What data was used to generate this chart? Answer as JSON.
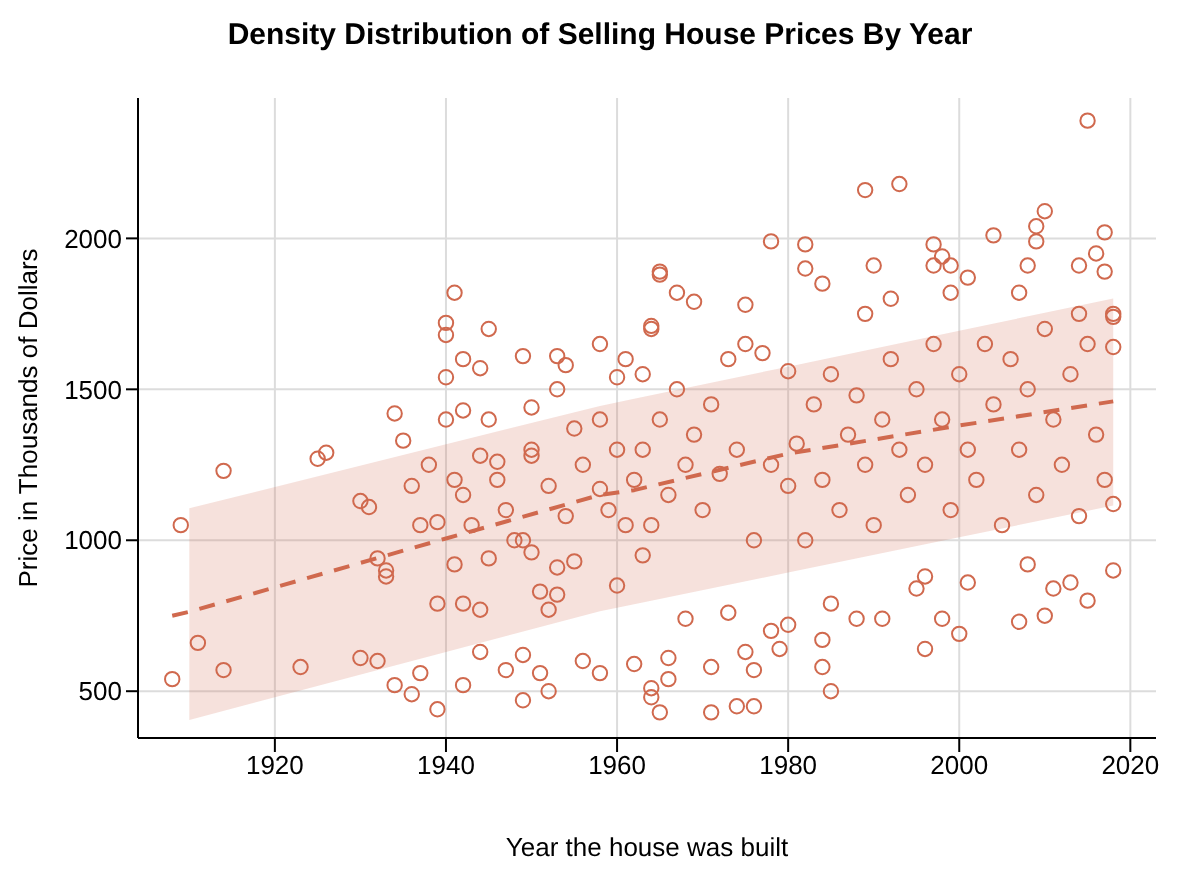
{
  "chart_data": {
    "type": "scatter",
    "title": "Density Distribution of Selling House Prices By Year",
    "xlabel": "Year the house was built",
    "ylabel": "Price in Thousands of Dollars",
    "xlim": [
      1904,
      2023
    ],
    "xticks": [
      1920,
      1940,
      1960,
      1980,
      2000,
      2020
    ],
    "ylim": [
      345,
      2465
    ],
    "yticks": [
      500,
      1000,
      1500,
      2000
    ],
    "grid": true,
    "legend": false,
    "series": [
      {
        "color": "#d0694e",
        "marker": "circle",
        "x": [
          1908,
          1909,
          1911,
          1914,
          1914,
          1923,
          1925,
          1926,
          1930,
          1930,
          1931,
          1932,
          1933,
          1933,
          1932,
          1934,
          1935,
          1934,
          1936,
          1937,
          1936,
          1937,
          1938,
          1939,
          1939,
          1939,
          1940,
          1940,
          1941,
          1942,
          1940,
          1945,
          1944,
          1942,
          1941,
          1940,
          1941,
          1942,
          1944,
          1942,
          1944,
          1945,
          1944,
          1945,
          1946,
          1947,
          1947,
          1949,
          1949,
          1949,
          1950,
          1950,
          1949,
          1950,
          1951,
          1951,
          1952,
          1952,
          1953,
          1953,
          1953,
          1953,
          1954,
          1955,
          1955,
          1956,
          1958,
          1958,
          1958,
          1961,
          1960,
          1960,
          1962,
          1963,
          1964,
          1965,
          1964,
          1963,
          2015,
          1989,
          1993,
          1978,
          1982,
          1982,
          1965,
          1990,
          1997,
          1998,
          1997,
          1999,
          2004,
          2009,
          2010,
          2009,
          2008,
          2014,
          2016,
          2017,
          2017,
          1964,
          1967,
          1969,
          1975,
          1984,
          1989,
          1992,
          1999,
          2001,
          2007,
          2014,
          2018,
          2018,
          1965,
          1971,
          1974,
          1976,
          1985,
          1964,
          1966,
          1971,
          1976,
          1975,
          1979,
          1984,
          1980,
          1984,
          1996,
          2000,
          1998,
          2007,
          2010,
          2015,
          2013,
          2018,
          2011,
          2001,
          1995,
          1991,
          1988,
          1985,
          1978,
          1973,
          1968,
          1966,
          1996,
          2008,
          1942,
          1943,
          1946,
          1948,
          1950,
          1952,
          1954,
          1956,
          1958,
          1959,
          1960,
          1961,
          1962,
          1963,
          1964,
          1965,
          1966,
          1967,
          1968,
          1969,
          1970,
          1971,
          1972,
          1973,
          1974,
          1975,
          1976,
          1977,
          1978,
          1980,
          1980,
          1981,
          1982,
          1983,
          1984,
          1985,
          1986,
          1987,
          1988,
          1989,
          1990,
          1991,
          1992,
          1993,
          1994,
          1995,
          1996,
          1997,
          1998,
          1999,
          2000,
          2001,
          2002,
          2003,
          2004,
          2005,
          2006,
          2007,
          2008,
          2009,
          2010,
          2011,
          2012,
          2013,
          2014,
          2015,
          2016,
          2017,
          2018,
          2018
        ],
        "values": [
          540,
          1050,
          660,
          1230,
          570,
          580,
          1270,
          1290,
          610,
          1130,
          1110,
          940,
          900,
          880,
          600,
          1420,
          1330,
          520,
          490,
          560,
          1180,
          1050,
          1250,
          1060,
          440,
          790,
          1680,
          1720,
          1820,
          1600,
          1540,
          1700,
          1570,
          1430,
          1200,
          1400,
          920,
          790,
          630,
          520,
          770,
          940,
          1280,
          1400,
          1260,
          1100,
          570,
          470,
          620,
          1610,
          1440,
          1280,
          1000,
          960,
          830,
          560,
          500,
          770,
          1610,
          1500,
          910,
          820,
          1580,
          1370,
          930,
          600,
          1650,
          1170,
          560,
          1600,
          1540,
          850,
          590,
          1550,
          1700,
          1880,
          480,
          950,
          2390,
          2160,
          2180,
          1990,
          1980,
          1900,
          1890,
          1910,
          1980,
          1940,
          1910,
          1910,
          2010,
          2040,
          2090,
          1990,
          1910,
          1910,
          1950,
          2020,
          1890,
          1710,
          1820,
          1790,
          1780,
          1850,
          1750,
          1800,
          1820,
          1870,
          1820,
          1750,
          1750,
          1640,
          430,
          430,
          450,
          450,
          500,
          510,
          540,
          580,
          570,
          630,
          640,
          580,
          720,
          670,
          640,
          690,
          740,
          730,
          750,
          800,
          860,
          900,
          840,
          860,
          840,
          740,
          740,
          790,
          700,
          760,
          740,
          610,
          880,
          920,
          1150,
          1050,
          1200,
          1000,
          1300,
          1180,
          1080,
          1250,
          1400,
          1100,
          1300,
          1050,
          1200,
          1300,
          1050,
          1400,
          1150,
          1500,
          1250,
          1350,
          1100,
          1450,
          1220,
          1600,
          1300,
          1650,
          1000,
          1620,
          1250,
          1180,
          1560,
          1320,
          1000,
          1450,
          1200,
          1550,
          1100,
          1350,
          1480,
          1250,
          1050,
          1400,
          1600,
          1300,
          1150,
          1500,
          1250,
          1650,
          1400,
          1100,
          1550,
          1300,
          1200,
          1650,
          1450,
          1050,
          1600,
          1300,
          1500,
          1150,
          1700,
          1400,
          1250,
          1550,
          1080,
          1650,
          1350,
          1200,
          1740,
          1120
        ]
      },
      {
        "type": "line",
        "color": "#d0694e",
        "line_style": "dashed",
        "x": [
          1908,
          1910,
          1940,
          1958,
          1962,
          1980,
          2000,
          2018
        ],
        "values": [
          750,
          763,
          1006,
          1150,
          1166,
          1287,
          1380,
          1460
        ],
        "lower": [
          null,
          405,
          630,
          765,
          788,
          893,
          1010,
          1115
        ],
        "upper": [
          null,
          1106,
          1318,
          1445,
          1469,
          1575,
          1694,
          1801
        ]
      }
    ]
  }
}
